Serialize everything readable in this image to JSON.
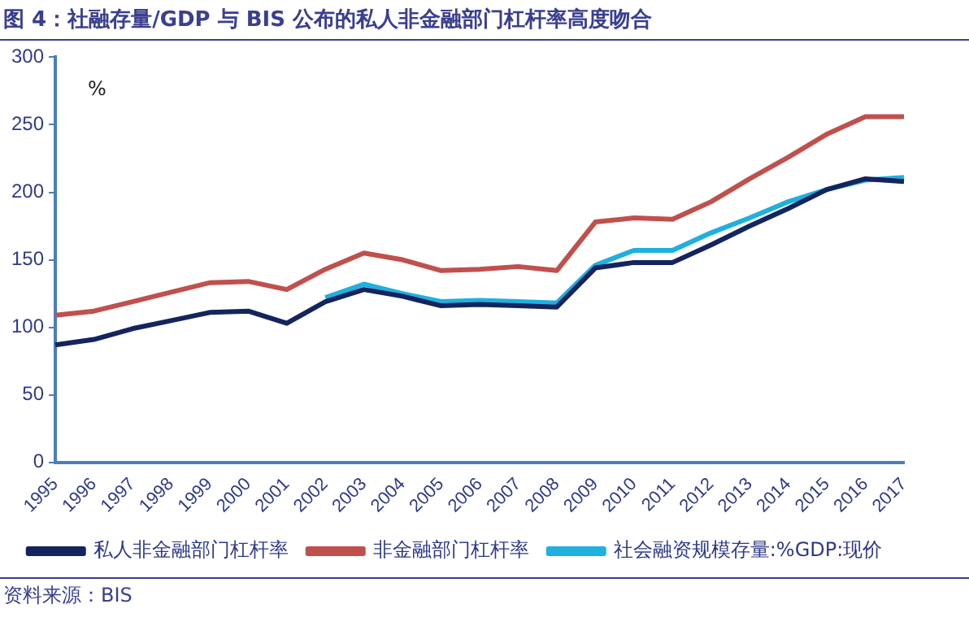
{
  "chart_data": {
    "type": "line",
    "title": "图 4：社融存量/GDP 与 BIS 公布的私人非金融部门杠杆率高度吻合",
    "ylabel": "%",
    "annotations": [
      "资料来源：BIS"
    ],
    "categories": [
      "1995",
      "1996",
      "1997",
      "1998",
      "1999",
      "2000",
      "2001",
      "2002",
      "2003",
      "2004",
      "2005",
      "2006",
      "2007",
      "2008",
      "2009",
      "2010",
      "2011",
      "2012",
      "2013",
      "2014",
      "2015",
      "2016",
      "2017"
    ],
    "series": [
      {
        "name": "私人非金融部门杠杆率",
        "color": "#14245e",
        "values": [
          87,
          91,
          99,
          105,
          111,
          112,
          103,
          119,
          128,
          123,
          116,
          117,
          116,
          115,
          144,
          148,
          148,
          161,
          175,
          188,
          202,
          210,
          208
        ]
      },
      {
        "name": "非金融部门杠杆率",
        "color": "#c0504d",
        "values": [
          109,
          112,
          119,
          126,
          133,
          134,
          128,
          143,
          155,
          150,
          142,
          143,
          145,
          142,
          178,
          181,
          180,
          193,
          210,
          226,
          243,
          256,
          256
        ]
      },
      {
        "name": "社会融资规模存量:%GDP:现价",
        "color": "#1fb0e0",
        "values": [
          null,
          null,
          null,
          null,
          null,
          null,
          null,
          122,
          132,
          125,
          119,
          120,
          119,
          118,
          146,
          157,
          157,
          170,
          181,
          193,
          202,
          209,
          211
        ]
      }
    ],
    "ylim": [
      0,
      300
    ],
    "yticks": [
      0,
      50,
      100,
      150,
      200,
      250,
      300
    ],
    "grid": false,
    "legend": "bottom",
    "marker": "none",
    "line_style": "solid"
  }
}
